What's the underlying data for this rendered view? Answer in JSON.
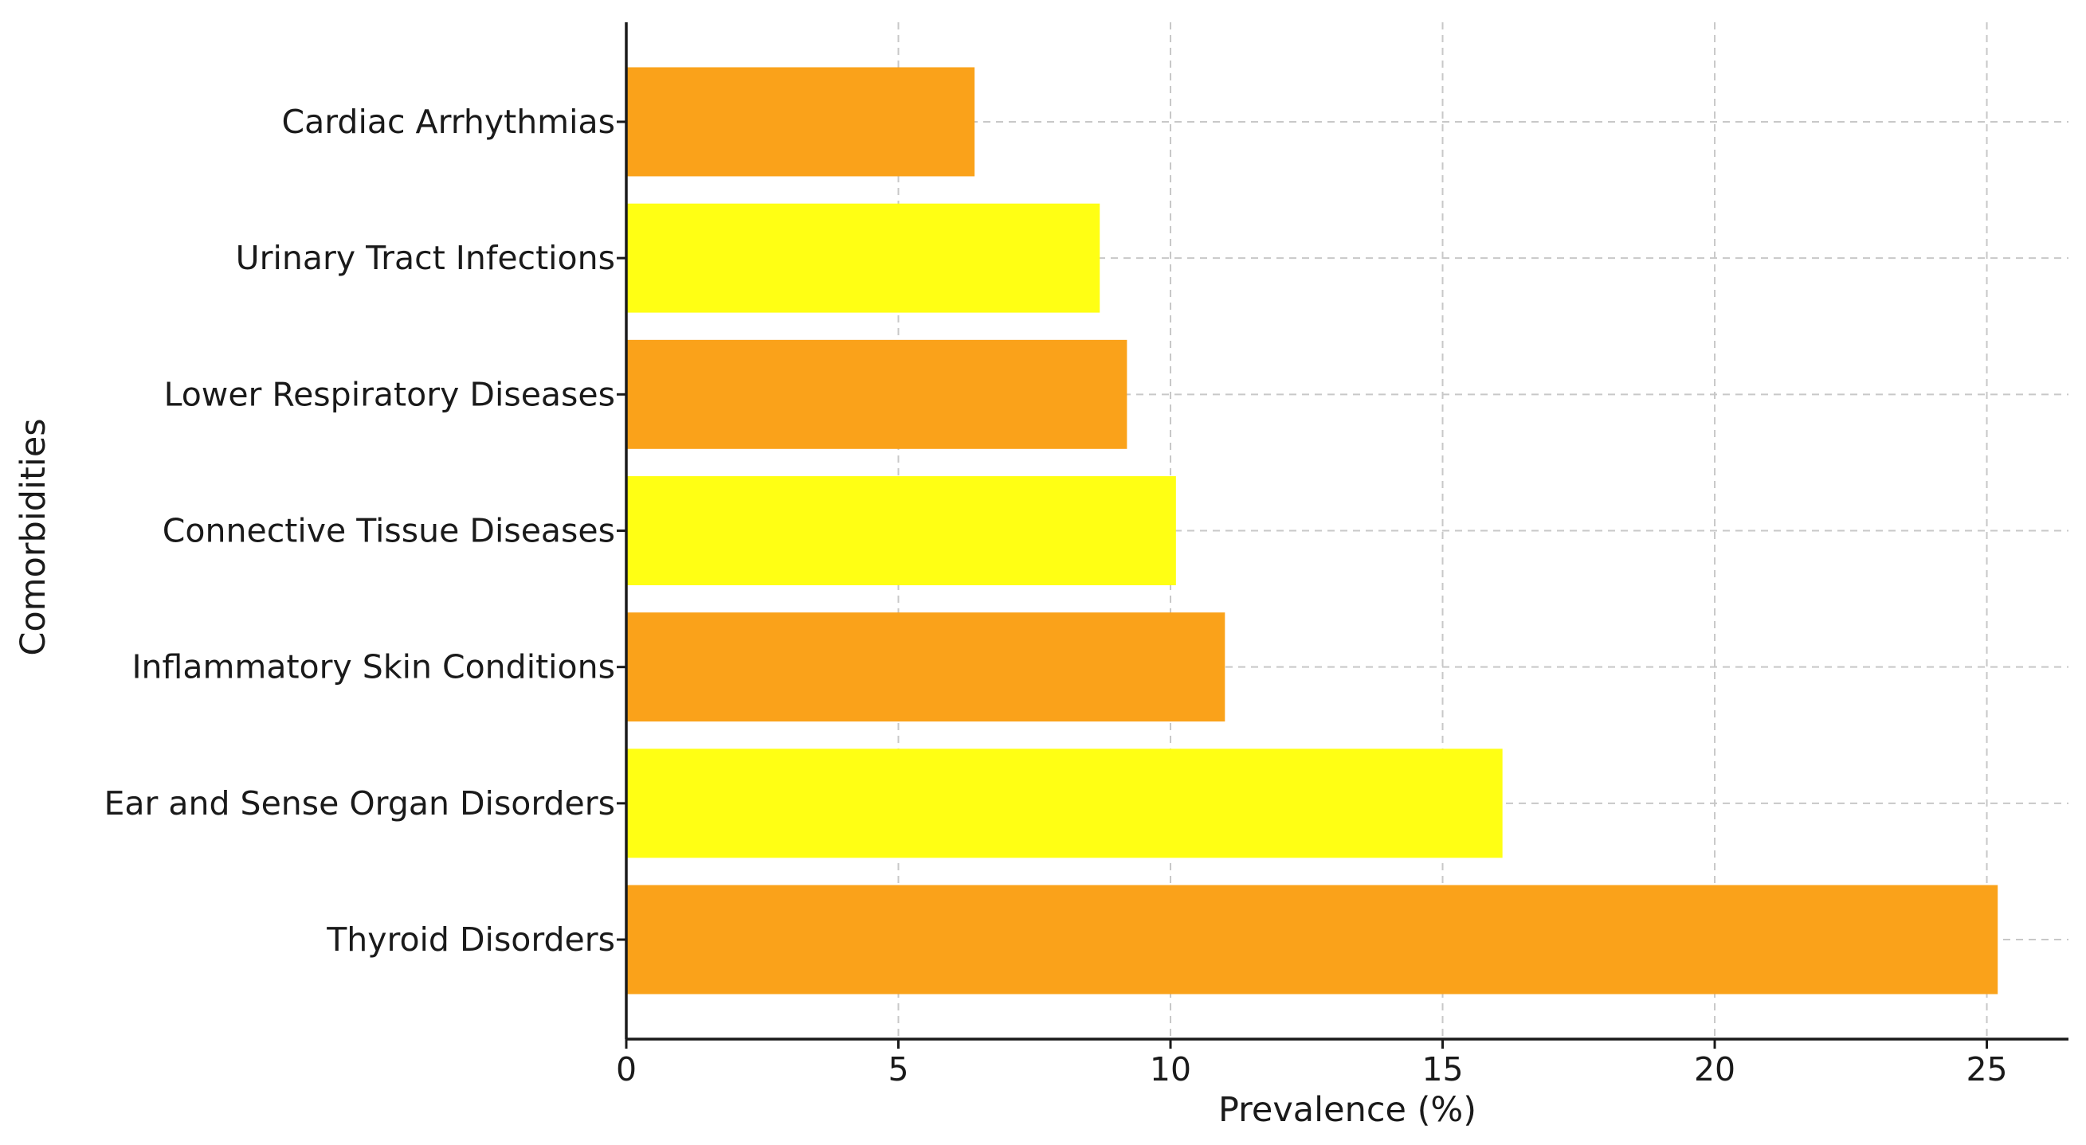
{
  "chart_data": {
    "type": "bar",
    "orientation": "horizontal",
    "categories": [
      "Thyroid Disorders",
      "Ear and Sense Organ Disorders",
      "Inflammatory Skin Conditions",
      "Connective Tissue Diseases",
      "Lower Respiratory Diseases",
      "Urinary Tract Infections",
      "Cardiac Arrhythmias"
    ],
    "values": [
      25.2,
      16.1,
      11.0,
      10.1,
      9.2,
      8.7,
      6.4
    ],
    "bar_colors": [
      "#FAA21A",
      "#FFFF14",
      "#FAA21A",
      "#FFFF14",
      "#FAA21A",
      "#FFFF14",
      "#FAA21A"
    ],
    "title": "",
    "xlabel": "Prevalence (%)",
    "ylabel": "Comorbidities",
    "xlim": [
      0,
      26.5
    ],
    "xticks": [
      0,
      5,
      10,
      15,
      20,
      25
    ],
    "xtick_labels": [
      "0",
      "5",
      "10",
      "15",
      "20",
      "25"
    ],
    "grid": true
  }
}
